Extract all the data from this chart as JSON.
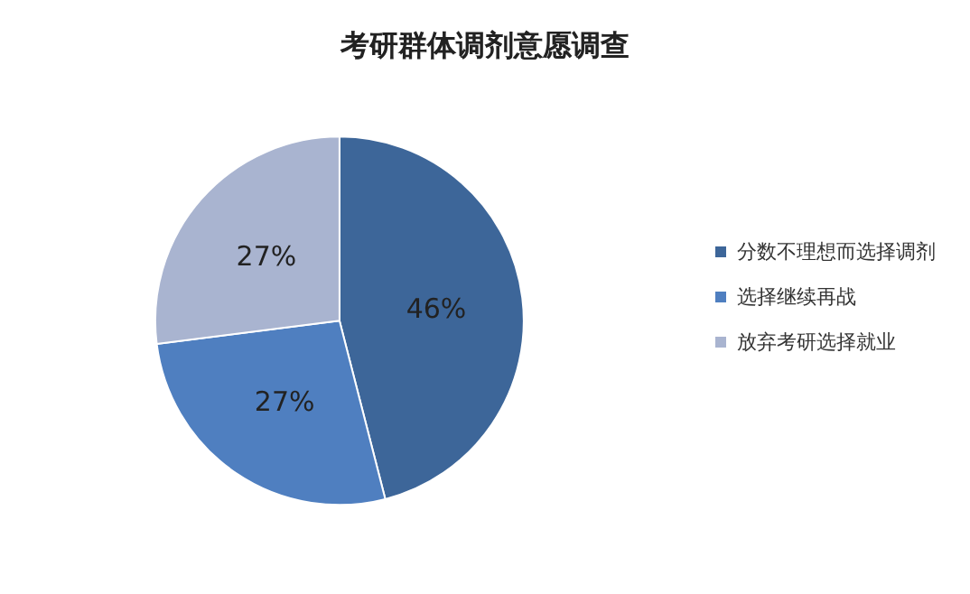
{
  "chart_data": {
    "type": "pie",
    "title": "考研群体调剂意愿调查",
    "categories": [
      "分数不理想而选择调剂",
      "选择继续再战",
      "放弃考研选择就业"
    ],
    "values": [
      46,
      27,
      27
    ],
    "colors": [
      "#3d6699",
      "#4f7fc0",
      "#a9b4d0"
    ],
    "value_labels": [
      "46%",
      "27%",
      "27%"
    ],
    "legend": "right"
  }
}
